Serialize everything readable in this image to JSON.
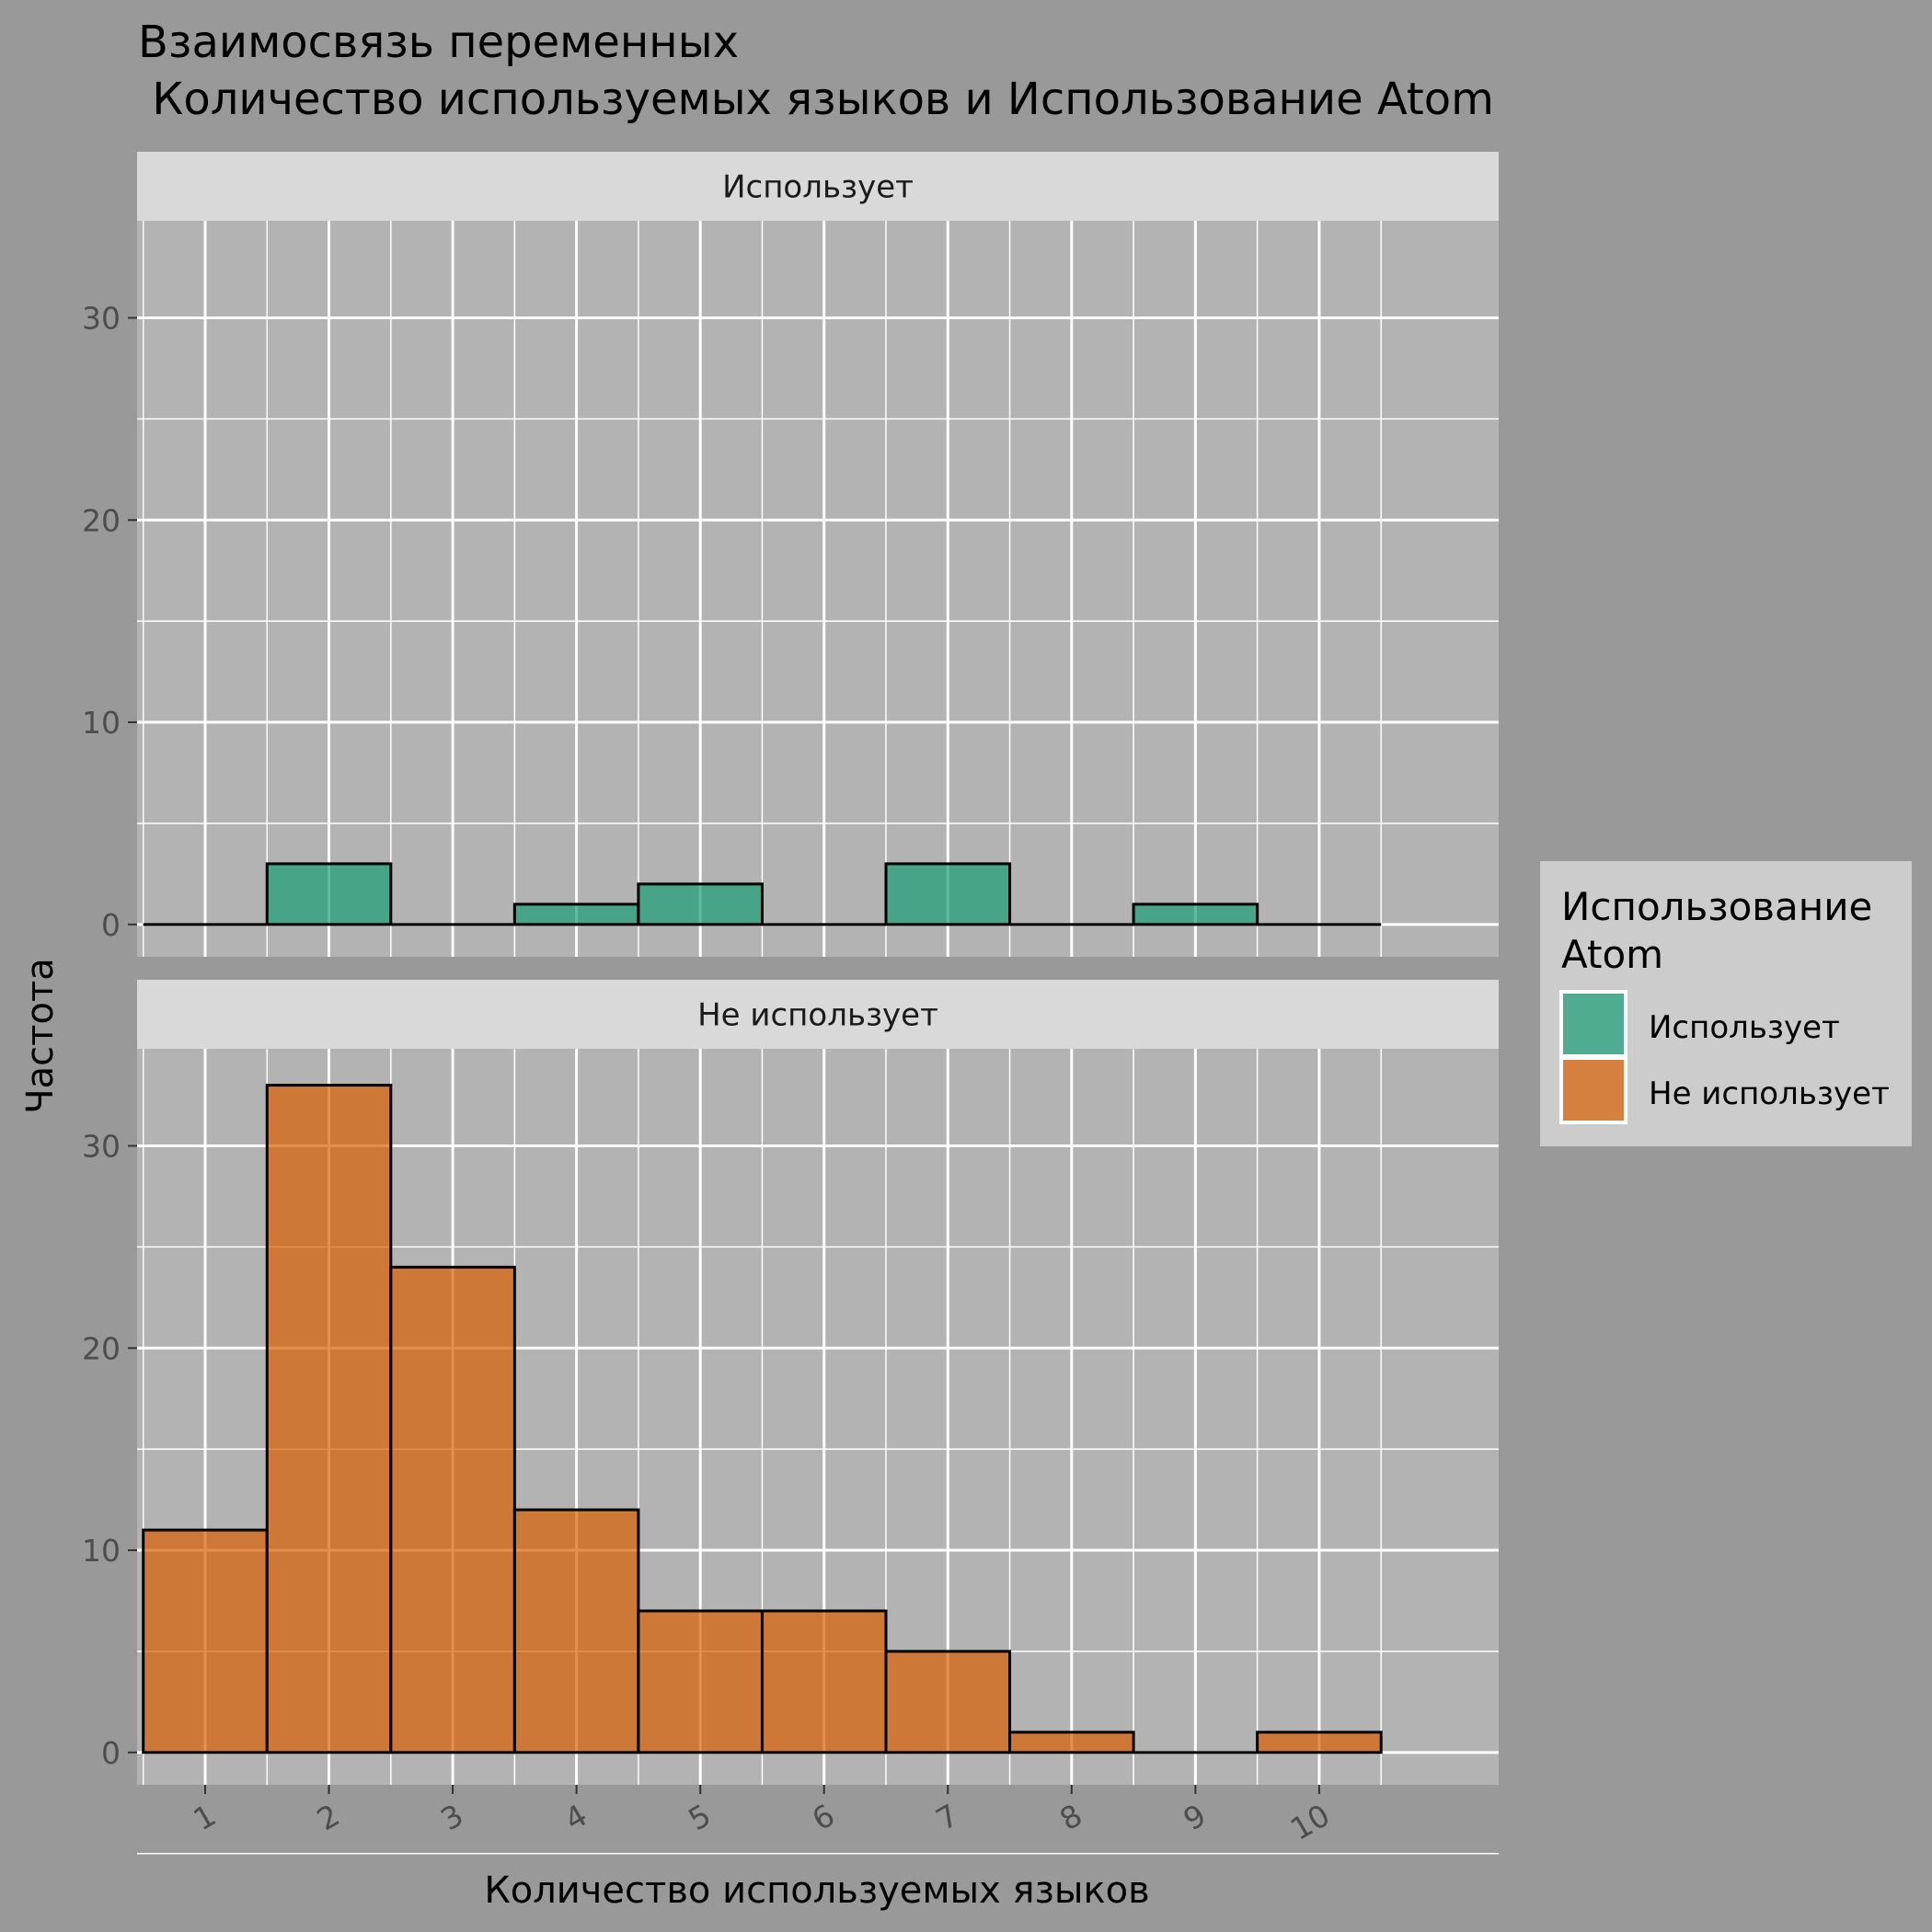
{
  "chart_data": {
    "type": "bar",
    "title_line1": "Взаимосвязь переменных",
    "title_line2": " Количество используемых языков и Использование Atom",
    "xlabel": "Количество используемых языков",
    "ylabel": "Частота",
    "x_ticks": [
      "1",
      "2",
      "3",
      "4",
      "5",
      "6",
      "7",
      "8",
      "9",
      "10"
    ],
    "y_ticks": [
      "0",
      "10",
      "20",
      "30"
    ],
    "ylim": [
      -1.6,
      34.8
    ],
    "xlim": [
      0.45,
      11.45
    ],
    "legend": {
      "title_line1": "Использование",
      "title_line2": "Atom",
      "position": "right",
      "items": [
        {
          "label": "Использует",
          "color": "#1b9e77"
        },
        {
          "label": "Не использует",
          "color": "#d95f02"
        }
      ]
    },
    "categories": [
      1,
      2,
      3,
      4,
      5,
      6,
      7,
      8,
      9,
      10
    ],
    "series": [
      {
        "name": "Использует",
        "facet": "Использует",
        "color": "#1b9e77",
        "values": [
          0,
          3,
          0,
          1,
          2,
          0,
          3,
          0,
          1,
          0
        ]
      },
      {
        "name": "Не использует",
        "facet": "Не использует",
        "color": "#d95f02",
        "values": [
          11,
          33,
          24,
          12,
          7,
          7,
          5,
          1,
          0,
          1
        ]
      }
    ],
    "grid": true
  }
}
